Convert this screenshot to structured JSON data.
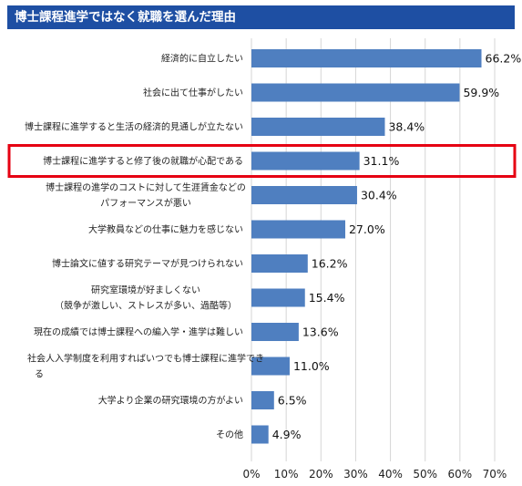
{
  "title": "博士課程進学ではなく就職を選んだ理由",
  "colors": {
    "title_background": "#1e4fa3",
    "title_text": "#ffffff",
    "bar": "#4f7fc0",
    "gridline": "#d6d6d6",
    "highlight_border": "#e60012"
  },
  "chart_data": {
    "type": "bar",
    "orientation": "horizontal",
    "title": "博士課程進学ではなく就職を選んだ理由",
    "categories": [
      [
        "経済的に自立したい"
      ],
      [
        "社会に出て仕事がしたい"
      ],
      [
        "博士課程に進学すると生活の経済的見通しが立たない"
      ],
      [
        "博士課程に進学すると修了後の就職が心配である"
      ],
      [
        "博士課程の進学のコストに対して生涯賃金などの",
        "パフォーマンスが悪い"
      ],
      [
        "大学教員などの仕事に魅力を感じない"
      ],
      [
        "博士論文に値する研究テーマが見つけられない"
      ],
      [
        "研究室環境が好ましくない",
        "（競争が激しい、ストレスが多い、過酷等）"
      ],
      [
        "現在の成績では博士課程への編入学・進学は難しい"
      ],
      [
        "社会人入学制度を利用すればいつでも博士課程に進学でき",
        "る"
      ],
      [
        "大学より企業の研究環境の方がよい"
      ],
      [
        "その他"
      ]
    ],
    "values": [
      66.2,
      59.9,
      38.4,
      31.1,
      30.4,
      27.0,
      16.2,
      15.4,
      13.6,
      11.0,
      6.5,
      4.9
    ],
    "value_labels": [
      "66.2%",
      "59.9%",
      "38.4%",
      "31.1%",
      "30.4%",
      "27.0%",
      "16.2%",
      "15.4%",
      "13.6%",
      "11.0%",
      "6.5%",
      "4.9%"
    ],
    "xlim": [
      0,
      70
    ],
    "xticks": [
      0,
      10,
      20,
      30,
      40,
      50,
      60,
      70
    ],
    "xtick_labels": [
      "0%",
      "10%",
      "20%",
      "30%",
      "40%",
      "50%",
      "60%",
      "70%"
    ],
    "xlabel": "",
    "ylabel": "",
    "grid": "vertical",
    "highlighted_category_index": 3
  }
}
